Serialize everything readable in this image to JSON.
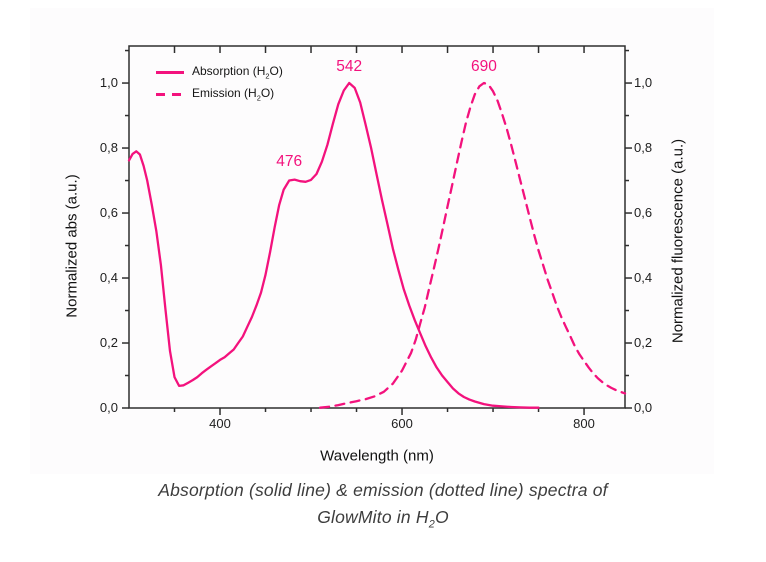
{
  "colors": {
    "accent_pink": "#F3127D",
    "axis_line": "#2e2e2e",
    "tick_text": "#1f1f1f",
    "caption_text": "#3d3d3d",
    "background": "#ffffff"
  },
  "legend": {
    "items": [
      {
        "pre": "Absorption (H",
        "sub": "2",
        "post": "O)",
        "style": "solid"
      },
      {
        "pre": "Emission (H",
        "sub": "2",
        "post": "O)",
        "style": "dashed"
      }
    ]
  },
  "caption": {
    "line1": "Absorption (solid line) & emission (dotted line) spectra of",
    "line2_pre": "GlowMito in H",
    "line2_sub": "2",
    "line2_post": "O"
  },
  "chart_data": {
    "type": "line",
    "title": "",
    "xlabel": "Wavelength (nm)",
    "ylabel_left": "Normalized abs (a.u.)",
    "ylabel_right": "Normalized fluorescence (a.u.)",
    "x_range": [
      300,
      845
    ],
    "y_range": [
      0,
      1.114
    ],
    "grid": false,
    "legend_position": "top-left-inside",
    "x_major_ticks": [
      400,
      600,
      800
    ],
    "x_minor_ticks": [
      350,
      450,
      500,
      550,
      650,
      700,
      750
    ],
    "x_top_ticks": [
      350,
      400,
      450,
      500,
      550,
      600,
      650,
      700,
      750,
      800
    ],
    "y_major_ticks": [
      0.0,
      0.2,
      0.4,
      0.6,
      0.8,
      1.0
    ],
    "y_minor_ticks": [
      0.1,
      0.3,
      0.5,
      0.7,
      0.9,
      1.1
    ],
    "x_tick_labels": [
      "400",
      "600",
      "800"
    ],
    "y_tick_labels_left": [
      "1,0",
      "0,8",
      "0,6",
      "0,4",
      "0,2",
      "0,0"
    ],
    "y_tick_labels_right": [
      "1,0",
      "0,8",
      "0,6",
      "0,4",
      "0,2",
      "0,0"
    ],
    "annotations": [
      {
        "text": "476",
        "x": 476,
        "y": 0.757
      },
      {
        "text": "542",
        "x": 542,
        "y": 1.049
      },
      {
        "text": "690",
        "x": 690,
        "y": 1.049
      }
    ],
    "series": [
      {
        "name": "Absorption (H2O)",
        "style": "solid",
        "color": "#F3127D",
        "points": [
          [
            300,
            0.762
          ],
          [
            304,
            0.782
          ],
          [
            308,
            0.79
          ],
          [
            312,
            0.78
          ],
          [
            316,
            0.745
          ],
          [
            320,
            0.7
          ],
          [
            325,
            0.625
          ],
          [
            330,
            0.545
          ],
          [
            335,
            0.44
          ],
          [
            340,
            0.305
          ],
          [
            345,
            0.175
          ],
          [
            350,
            0.095
          ],
          [
            355,
            0.068
          ],
          [
            360,
            0.07
          ],
          [
            365,
            0.078
          ],
          [
            370,
            0.086
          ],
          [
            375,
            0.095
          ],
          [
            380,
            0.107
          ],
          [
            385,
            0.118
          ],
          [
            390,
            0.128
          ],
          [
            395,
            0.138
          ],
          [
            400,
            0.148
          ],
          [
            405,
            0.156
          ],
          [
            410,
            0.168
          ],
          [
            415,
            0.18
          ],
          [
            420,
            0.2
          ],
          [
            425,
            0.22
          ],
          [
            430,
            0.25
          ],
          [
            435,
            0.28
          ],
          [
            440,
            0.315
          ],
          [
            445,
            0.355
          ],
          [
            450,
            0.41
          ],
          [
            455,
            0.48
          ],
          [
            460,
            0.555
          ],
          [
            465,
            0.625
          ],
          [
            470,
            0.672
          ],
          [
            476,
            0.7
          ],
          [
            482,
            0.703
          ],
          [
            488,
            0.698
          ],
          [
            494,
            0.696
          ],
          [
            500,
            0.702
          ],
          [
            506,
            0.72
          ],
          [
            512,
            0.758
          ],
          [
            518,
            0.81
          ],
          [
            524,
            0.875
          ],
          [
            530,
            0.935
          ],
          [
            536,
            0.977
          ],
          [
            542,
            1.0
          ],
          [
            548,
            0.985
          ],
          [
            554,
            0.94
          ],
          [
            560,
            0.872
          ],
          [
            566,
            0.8
          ],
          [
            572,
            0.72
          ],
          [
            578,
            0.64
          ],
          [
            584,
            0.565
          ],
          [
            590,
            0.49
          ],
          [
            596,
            0.425
          ],
          [
            602,
            0.365
          ],
          [
            608,
            0.315
          ],
          [
            614,
            0.27
          ],
          [
            620,
            0.23
          ],
          [
            626,
            0.19
          ],
          [
            632,
            0.155
          ],
          [
            638,
            0.125
          ],
          [
            644,
            0.1
          ],
          [
            650,
            0.08
          ],
          [
            656,
            0.06
          ],
          [
            662,
            0.045
          ],
          [
            668,
            0.034
          ],
          [
            674,
            0.026
          ],
          [
            680,
            0.02
          ],
          [
            690,
            0.012
          ],
          [
            700,
            0.007
          ],
          [
            710,
            0.005
          ],
          [
            720,
            0.003
          ],
          [
            730,
            0.002
          ],
          [
            740,
            0.001
          ],
          [
            750,
            0.001
          ]
        ]
      },
      {
        "name": "Emission (H2O)",
        "style": "dashed",
        "color": "#F3127D",
        "points": [
          [
            510,
            0.001
          ],
          [
            520,
            0.004
          ],
          [
            530,
            0.009
          ],
          [
            540,
            0.015
          ],
          [
            550,
            0.021
          ],
          [
            560,
            0.027
          ],
          [
            570,
            0.036
          ],
          [
            580,
            0.05
          ],
          [
            590,
            0.075
          ],
          [
            600,
            0.115
          ],
          [
            610,
            0.17
          ],
          [
            615,
            0.21
          ],
          [
            620,
            0.26
          ],
          [
            625,
            0.31
          ],
          [
            630,
            0.37
          ],
          [
            635,
            0.43
          ],
          [
            640,
            0.49
          ],
          [
            645,
            0.555
          ],
          [
            650,
            0.62
          ],
          [
            655,
            0.685
          ],
          [
            660,
            0.75
          ],
          [
            665,
            0.815
          ],
          [
            670,
            0.875
          ],
          [
            675,
            0.925
          ],
          [
            680,
            0.965
          ],
          [
            685,
            0.99
          ],
          [
            690,
            1.0
          ],
          [
            695,
            0.995
          ],
          [
            700,
            0.975
          ],
          [
            705,
            0.945
          ],
          [
            710,
            0.905
          ],
          [
            715,
            0.86
          ],
          [
            720,
            0.81
          ],
          [
            725,
            0.755
          ],
          [
            730,
            0.7
          ],
          [
            735,
            0.645
          ],
          [
            740,
            0.59
          ],
          [
            745,
            0.535
          ],
          [
            750,
            0.485
          ],
          [
            755,
            0.44
          ],
          [
            760,
            0.395
          ],
          [
            765,
            0.355
          ],
          [
            770,
            0.315
          ],
          [
            775,
            0.28
          ],
          [
            780,
            0.25
          ],
          [
            785,
            0.22
          ],
          [
            790,
            0.19
          ],
          [
            795,
            0.165
          ],
          [
            800,
            0.145
          ],
          [
            805,
            0.125
          ],
          [
            810,
            0.107
          ],
          [
            815,
            0.092
          ],
          [
            820,
            0.08
          ],
          [
            825,
            0.07
          ],
          [
            830,
            0.062
          ],
          [
            835,
            0.055
          ],
          [
            840,
            0.05
          ],
          [
            845,
            0.045
          ]
        ]
      }
    ]
  }
}
